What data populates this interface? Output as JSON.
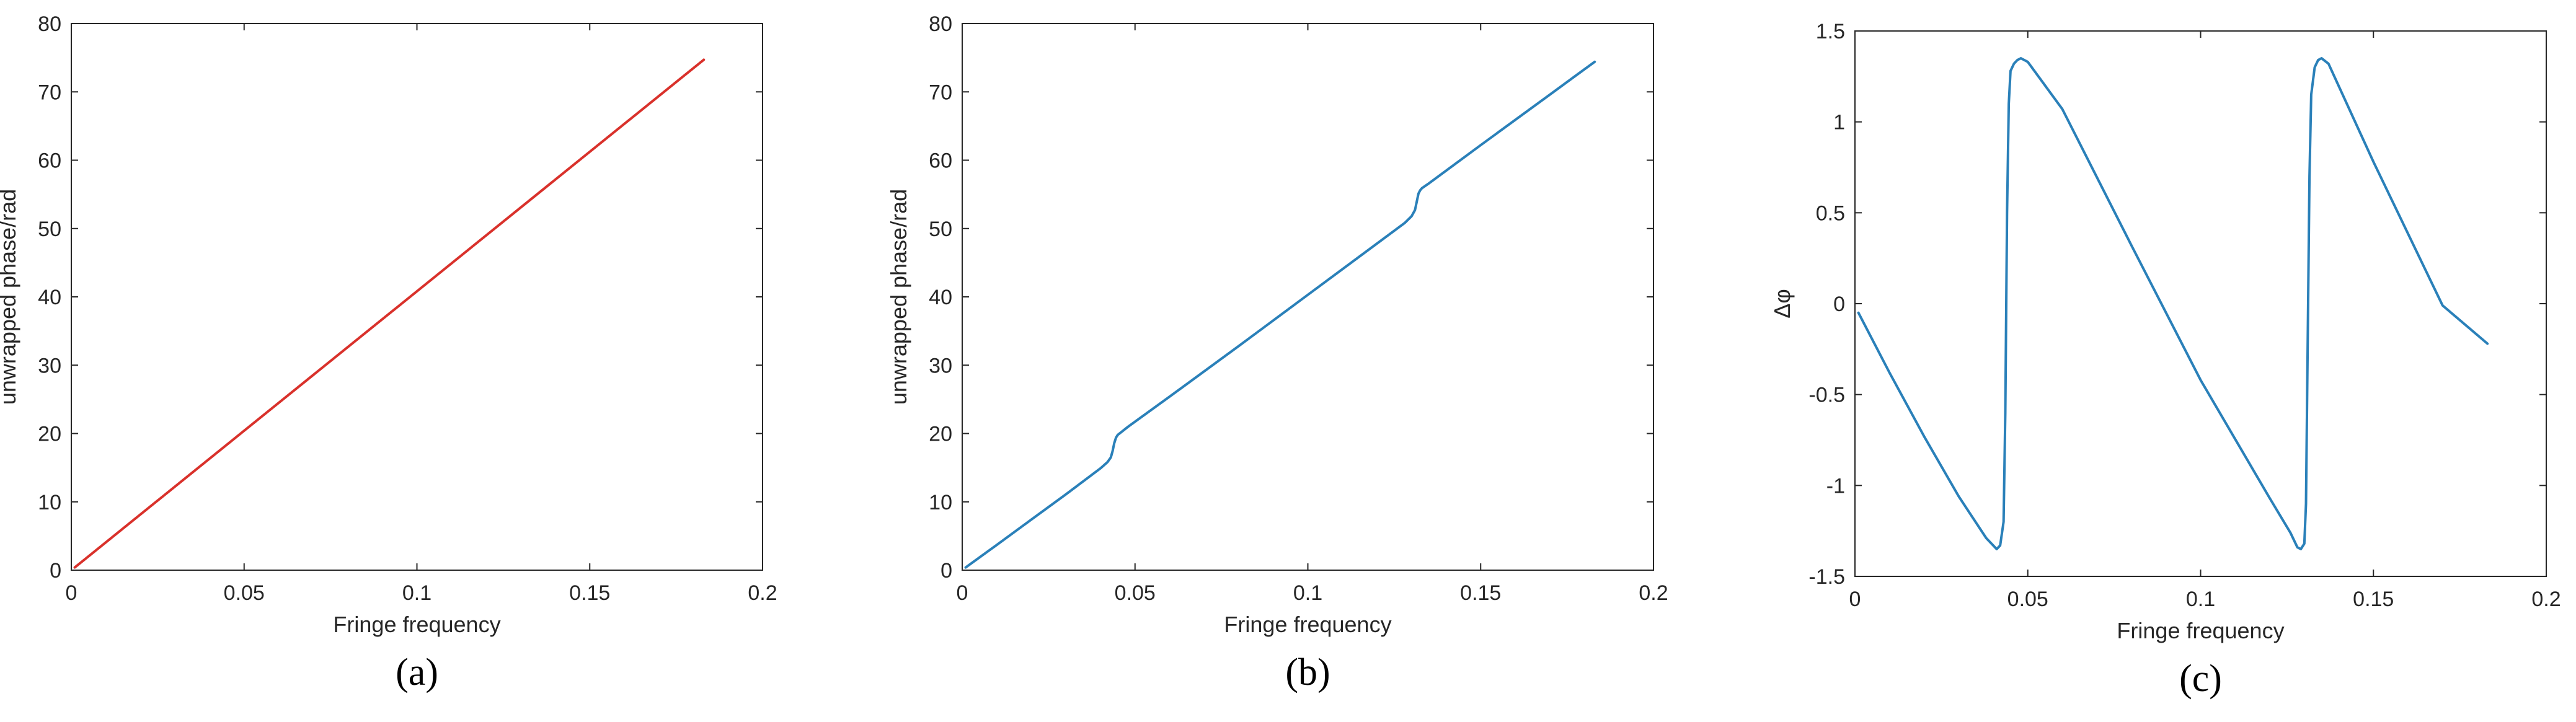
{
  "chart_data": [
    {
      "type": "line",
      "panel_label": "(a)",
      "xlabel": "Fringe frequency",
      "ylabel": "unwrapped phase/rad",
      "xlim": [
        0,
        0.2
      ],
      "ylim": [
        0,
        80
      ],
      "xticks": [
        0,
        0.05,
        0.1,
        0.15,
        0.2
      ],
      "xtick_labels": [
        "0",
        "0.05",
        "0.1",
        "0.15",
        "0.2"
      ],
      "yticks": [
        0,
        10,
        20,
        30,
        40,
        50,
        60,
        70,
        80
      ],
      "ytick_labels": [
        "0",
        "10",
        "20",
        "30",
        "40",
        "50",
        "60",
        "70",
        "80"
      ],
      "grid": false,
      "color": "#d9312b",
      "series": [
        {
          "x": [
            0.001,
            0.183
          ],
          "y": [
            0.4,
            74.7
          ]
        }
      ]
    },
    {
      "type": "line",
      "panel_label": "(b)",
      "xlabel": "Fringe frequency",
      "ylabel": "unwrapped phase/rad",
      "xlim": [
        0,
        0.2
      ],
      "ylim": [
        0,
        80
      ],
      "xticks": [
        0,
        0.05,
        0.1,
        0.15,
        0.2
      ],
      "xtick_labels": [
        "0",
        "0.05",
        "0.1",
        "0.15",
        "0.2"
      ],
      "yticks": [
        0,
        10,
        20,
        30,
        40,
        50,
        60,
        70,
        80
      ],
      "ytick_labels": [
        "0",
        "10",
        "20",
        "30",
        "40",
        "50",
        "60",
        "70",
        "80"
      ],
      "grid": false,
      "color": "#2a80b9",
      "series": [
        {
          "x": [
            0.001,
            0.01,
            0.02,
            0.03,
            0.04,
            0.042,
            0.043,
            0.0435,
            0.044,
            0.0445,
            0.045,
            0.046,
            0.048,
            0.06,
            0.08,
            0.1,
            0.12,
            0.128,
            0.13,
            0.131,
            0.1315,
            0.132,
            0.1325,
            0.133,
            0.135,
            0.15,
            0.17,
            0.183
          ],
          "y": [
            0.4,
            3.7,
            7.4,
            11.1,
            14.9,
            15.8,
            16.5,
            17.4,
            18.6,
            19.4,
            19.8,
            20.2,
            21.0,
            25.4,
            32.8,
            40.3,
            47.8,
            50.8,
            51.8,
            52.7,
            53.9,
            55.1,
            55.6,
            55.9,
            56.6,
            62.2,
            69.6,
            74.4
          ]
        }
      ]
    },
    {
      "type": "line",
      "panel_label": "(c)",
      "xlabel": "Fringe frequency",
      "ylabel": "Δφ",
      "xlim": [
        0,
        0.2
      ],
      "ylim": [
        -1.5,
        1.5
      ],
      "xticks": [
        0,
        0.05,
        0.1,
        0.15,
        0.2
      ],
      "xtick_labels": [
        "0",
        "0.05",
        "0.1",
        "0.15",
        "0.2"
      ],
      "yticks": [
        -1.5,
        -1,
        -0.5,
        0,
        0.5,
        1,
        1.5
      ],
      "ytick_labels": [
        "-1.5",
        "-1",
        "-0.5",
        "0",
        "0.5",
        "1",
        "1.5"
      ],
      "grid": false,
      "color": "#2a80b9",
      "series": [
        {
          "x": [
            0.001,
            0.01,
            0.02,
            0.03,
            0.038,
            0.041,
            0.042,
            0.043,
            0.0435,
            0.044,
            0.0445,
            0.045,
            0.046,
            0.047,
            0.048,
            0.05,
            0.06,
            0.08,
            0.1,
            0.12,
            0.126,
            0.128,
            0.129,
            0.13,
            0.1305,
            0.131,
            0.1315,
            0.132,
            0.133,
            0.134,
            0.135,
            0.137,
            0.15,
            0.17,
            0.183
          ],
          "y": [
            -0.05,
            -0.38,
            -0.73,
            -1.06,
            -1.29,
            -1.35,
            -1.33,
            -1.2,
            -0.6,
            0.5,
            1.1,
            1.28,
            1.32,
            1.34,
            1.35,
            1.33,
            1.07,
            0.32,
            -0.42,
            -1.07,
            -1.26,
            -1.34,
            -1.35,
            -1.32,
            -1.1,
            -0.2,
            0.7,
            1.15,
            1.3,
            1.34,
            1.35,
            1.32,
            0.78,
            -0.01,
            -0.22
          ]
        }
      ]
    }
  ]
}
